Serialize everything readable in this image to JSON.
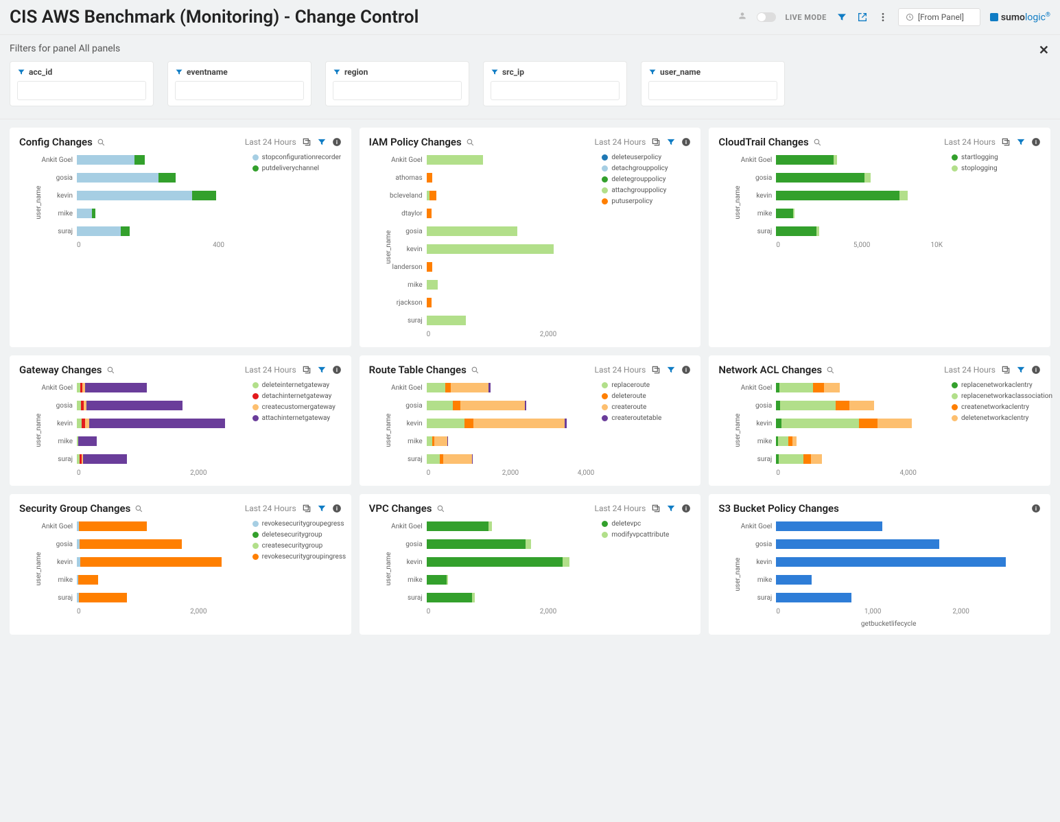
{
  "header": {
    "title": "CIS AWS Benchmark (Monitoring) - Change Control",
    "live_mode": "LIVE MODE",
    "time_label": "[From Panel]",
    "logo_a": "sumo",
    "logo_b": "logic"
  },
  "filters": {
    "title": "Filters for panel All panels",
    "items": [
      {
        "label": "acc_id"
      },
      {
        "label": "eventname"
      },
      {
        "label": "region"
      },
      {
        "label": "src_ip"
      },
      {
        "label": "user_name"
      }
    ]
  },
  "colors": {
    "lightblue": "#a6cee3",
    "blue": "#1f78b4",
    "lightgreen": "#b2df8a",
    "green": "#33a02c",
    "orange": "#ff7f00",
    "lightorange": "#fdbf6f",
    "purple": "#6a3d9a",
    "red": "#e31a1c",
    "pink": "#fb9a99",
    "sumoblue": "#2e7dd7"
  },
  "panels": [
    {
      "title": "Config Changes",
      "time": "Last 24 Hours",
      "ylabel": "user_name",
      "max": 500,
      "ticks": [
        {
          "v": 0,
          "l": "0"
        },
        {
          "v": 400,
          "l": "400"
        }
      ],
      "legend": [
        {
          "c": "lightblue",
          "l": "stopconfigurationrecorder"
        },
        {
          "c": "green",
          "l": "putdeliverychannel"
        }
      ],
      "rows": [
        {
          "l": "Ankit Goel",
          "segs": [
            {
              "c": "lightblue",
              "v": 170
            },
            {
              "c": "green",
              "v": 30
            }
          ]
        },
        {
          "l": "gosia",
          "segs": [
            {
              "c": "lightblue",
              "v": 240
            },
            {
              "c": "green",
              "v": 50
            }
          ]
        },
        {
          "l": "kevin",
          "segs": [
            {
              "c": "lightblue",
              "v": 340
            },
            {
              "c": "green",
              "v": 70
            }
          ]
        },
        {
          "l": "mike",
          "segs": [
            {
              "c": "lightblue",
              "v": 45
            },
            {
              "c": "green",
              "v": 10
            }
          ]
        },
        {
          "l": "suraj",
          "segs": [
            {
              "c": "lightblue",
              "v": 130
            },
            {
              "c": "green",
              "v": 25
            }
          ]
        }
      ]
    },
    {
      "title": "IAM Policy Changes",
      "time": "Last 24 Hours",
      "ylabel": "user_name",
      "max": 3000,
      "ticks": [
        {
          "v": 0,
          "l": "0"
        },
        {
          "v": 2000,
          "l": "2,000"
        }
      ],
      "legend": [
        {
          "c": "blue",
          "l": "deleteuserpolicy"
        },
        {
          "c": "lightblue",
          "l": "detachgrouppolicy"
        },
        {
          "c": "green",
          "l": "deletegrouppolicy"
        },
        {
          "c": "lightgreen",
          "l": "attachgrouppolicy"
        },
        {
          "c": "orange",
          "l": "putuserpolicy"
        }
      ],
      "rows": [
        {
          "l": "Ankit Goel",
          "segs": [
            {
              "c": "lightgreen",
              "v": 1000
            }
          ]
        },
        {
          "l": "athomas",
          "segs": [
            {
              "c": "orange",
              "v": 100
            }
          ]
        },
        {
          "l": "bcleveland",
          "segs": [
            {
              "c": "lightgreen",
              "v": 50
            },
            {
              "c": "orange",
              "v": 120
            }
          ]
        },
        {
          "l": "dtaylor",
          "segs": [
            {
              "c": "orange",
              "v": 90
            }
          ]
        },
        {
          "l": "gosia",
          "segs": [
            {
              "c": "lightgreen",
              "v": 1600
            }
          ]
        },
        {
          "l": "kevin",
          "segs": [
            {
              "c": "lightgreen",
              "v": 2250
            }
          ]
        },
        {
          "l": "landerson",
          "segs": [
            {
              "c": "orange",
              "v": 100
            }
          ]
        },
        {
          "l": "mike",
          "segs": [
            {
              "c": "lightgreen",
              "v": 200
            }
          ]
        },
        {
          "l": "rjackson",
          "segs": [
            {
              "c": "orange",
              "v": 90
            }
          ]
        },
        {
          "l": "suraj",
          "segs": [
            {
              "c": "lightgreen",
              "v": 700
            }
          ]
        }
      ]
    },
    {
      "title": "CloudTrail Changes",
      "time": "Last 24 Hours",
      "ylabel": "user_name",
      "max": 11000,
      "ticks": [
        {
          "v": 0,
          "l": "0"
        },
        {
          "v": 5000,
          "l": "5,000"
        },
        {
          "v": 10000,
          "l": "10K"
        }
      ],
      "legend": [
        {
          "c": "green",
          "l": "startlogging"
        },
        {
          "c": "lightgreen",
          "l": "stoplogging"
        }
      ],
      "rows": [
        {
          "l": "Ankit Goel",
          "segs": [
            {
              "c": "green",
              "v": 3700
            },
            {
              "c": "lightgreen",
              "v": 250
            }
          ]
        },
        {
          "l": "gosia",
          "segs": [
            {
              "c": "green",
              "v": 5700
            },
            {
              "c": "lightgreen",
              "v": 400
            }
          ]
        },
        {
          "l": "kevin",
          "segs": [
            {
              "c": "green",
              "v": 8000
            },
            {
              "c": "lightgreen",
              "v": 500
            }
          ]
        },
        {
          "l": "mike",
          "segs": [
            {
              "c": "green",
              "v": 1100
            },
            {
              "c": "lightgreen",
              "v": 90
            }
          ]
        },
        {
          "l": "suraj",
          "segs": [
            {
              "c": "green",
              "v": 2600
            },
            {
              "c": "lightgreen",
              "v": 200
            }
          ]
        }
      ]
    },
    {
      "title": "Gateway Changes",
      "time": "Last 24 Hours",
      "ylabel": "user_name",
      "max": 3000,
      "ticks": [
        {
          "v": 0,
          "l": "0"
        },
        {
          "v": 2000,
          "l": "2,000"
        }
      ],
      "legend": [
        {
          "c": "lightgreen",
          "l": "deleteinternetgateway"
        },
        {
          "c": "red",
          "l": "detachinternetgateway"
        },
        {
          "c": "lightorange",
          "l": "createcustomergateway"
        },
        {
          "c": "purple",
          "l": "attachinternetgateway"
        }
      ],
      "rows": [
        {
          "l": "Ankit Goel",
          "segs": [
            {
              "c": "lightgreen",
              "v": 60
            },
            {
              "c": "red",
              "v": 40
            },
            {
              "c": "lightorange",
              "v": 40
            },
            {
              "c": "purple",
              "v": 1100
            }
          ]
        },
        {
          "l": "gosia",
          "segs": [
            {
              "c": "lightgreen",
              "v": 70
            },
            {
              "c": "red",
              "v": 50
            },
            {
              "c": "lightorange",
              "v": 50
            },
            {
              "c": "purple",
              "v": 1700
            }
          ]
        },
        {
          "l": "kevin",
          "segs": [
            {
              "c": "lightgreen",
              "v": 90
            },
            {
              "c": "red",
              "v": 60
            },
            {
              "c": "lightorange",
              "v": 70
            },
            {
              "c": "purple",
              "v": 2400
            }
          ]
        },
        {
          "l": "mike",
          "segs": [
            {
              "c": "lightgreen",
              "v": 30
            },
            {
              "c": "purple",
              "v": 320
            }
          ]
        },
        {
          "l": "suraj",
          "segs": [
            {
              "c": "lightgreen",
              "v": 50
            },
            {
              "c": "red",
              "v": 30
            },
            {
              "c": "lightorange",
              "v": 30
            },
            {
              "c": "purple",
              "v": 780
            }
          ]
        }
      ]
    },
    {
      "title": "Route Table Changes",
      "time": "Last 24 Hours",
      "ylabel": "user_name",
      "max": 4500,
      "ticks": [
        {
          "v": 0,
          "l": "0"
        },
        {
          "v": 2000,
          "l": "2,000"
        },
        {
          "v": 4000,
          "l": "4,000"
        }
      ],
      "legend": [
        {
          "c": "lightgreen",
          "l": "replaceroute"
        },
        {
          "c": "orange",
          "l": "deleteroute"
        },
        {
          "c": "lightorange",
          "l": "createroute"
        },
        {
          "c": "purple",
          "l": "createroutetable"
        }
      ],
      "rows": [
        {
          "l": "Ankit Goel",
          "segs": [
            {
              "c": "lightgreen",
              "v": 500
            },
            {
              "c": "orange",
              "v": 150
            },
            {
              "c": "lightorange",
              "v": 1000
            },
            {
              "c": "purple",
              "v": 40
            }
          ]
        },
        {
          "l": "gosia",
          "segs": [
            {
              "c": "lightgreen",
              "v": 700
            },
            {
              "c": "orange",
              "v": 200
            },
            {
              "c": "lightorange",
              "v": 1700
            },
            {
              "c": "purple",
              "v": 50
            }
          ]
        },
        {
          "l": "kevin",
          "segs": [
            {
              "c": "lightgreen",
              "v": 1000
            },
            {
              "c": "orange",
              "v": 250
            },
            {
              "c": "lightorange",
              "v": 2400
            },
            {
              "c": "purple",
              "v": 60
            }
          ]
        },
        {
          "l": "mike",
          "segs": [
            {
              "c": "lightgreen",
              "v": 150
            },
            {
              "c": "orange",
              "v": 50
            },
            {
              "c": "lightorange",
              "v": 350
            },
            {
              "c": "purple",
              "v": 20
            }
          ]
        },
        {
          "l": "suraj",
          "segs": [
            {
              "c": "lightgreen",
              "v": 350
            },
            {
              "c": "orange",
              "v": 100
            },
            {
              "c": "lightorange",
              "v": 750
            },
            {
              "c": "purple",
              "v": 30
            }
          ]
        }
      ]
    },
    {
      "title": "Network ACL Changes",
      "time": "Last 24 Hours",
      "ylabel": "user_name",
      "max": 5500,
      "ticks": [
        {
          "v": 0,
          "l": "0"
        },
        {
          "v": 4000,
          "l": "4,000"
        }
      ],
      "legend": [
        {
          "c": "green",
          "l": "replacenetworkaclentry"
        },
        {
          "c": "lightgreen",
          "l": "replacenetworkaclassociation"
        },
        {
          "c": "orange",
          "l": "createnetworkaclentry"
        },
        {
          "c": "lightorange",
          "l": "deletenetworkaclentry"
        }
      ],
      "rows": [
        {
          "l": "Ankit Goel",
          "segs": [
            {
              "c": "green",
              "v": 100
            },
            {
              "c": "lightgreen",
              "v": 1100
            },
            {
              "c": "orange",
              "v": 350
            },
            {
              "c": "lightorange",
              "v": 500
            }
          ]
        },
        {
          "l": "gosia",
          "segs": [
            {
              "c": "green",
              "v": 130
            },
            {
              "c": "lightgreen",
              "v": 1800
            },
            {
              "c": "orange",
              "v": 450
            },
            {
              "c": "lightorange",
              "v": 800
            }
          ]
        },
        {
          "l": "kevin",
          "segs": [
            {
              "c": "green",
              "v": 180
            },
            {
              "c": "lightgreen",
              "v": 2500
            },
            {
              "c": "orange",
              "v": 600
            },
            {
              "c": "lightorange",
              "v": 1100
            }
          ]
        },
        {
          "l": "mike",
          "segs": [
            {
              "c": "green",
              "v": 50
            },
            {
              "c": "lightgreen",
              "v": 350
            },
            {
              "c": "orange",
              "v": 120
            },
            {
              "c": "lightorange",
              "v": 150
            }
          ]
        },
        {
          "l": "suraj",
          "segs": [
            {
              "c": "green",
              "v": 80
            },
            {
              "c": "lightgreen",
              "v": 800
            },
            {
              "c": "orange",
              "v": 250
            },
            {
              "c": "lightorange",
              "v": 350
            }
          ]
        }
      ]
    },
    {
      "title": "Security Group Changes",
      "time": "Last 24 Hours",
      "ylabel": "user_name",
      "max": 3000,
      "ticks": [
        {
          "v": 0,
          "l": "0"
        },
        {
          "v": 2000,
          "l": "2,000"
        }
      ],
      "legend": [
        {
          "c": "lightblue",
          "l": "revokesecuritygroupegress"
        },
        {
          "c": "green",
          "l": "deletesecuritygroup"
        },
        {
          "c": "lightgreen",
          "l": "createsecuritygroup"
        },
        {
          "c": "orange",
          "l": "revokesecuritygroupingress"
        }
      ],
      "rows": [
        {
          "l": "Ankit Goel",
          "segs": [
            {
              "c": "lightblue",
              "v": 40
            },
            {
              "c": "orange",
              "v": 1200
            }
          ]
        },
        {
          "l": "gosia",
          "segs": [
            {
              "c": "lightblue",
              "v": 50
            },
            {
              "c": "orange",
              "v": 1800
            }
          ]
        },
        {
          "l": "kevin",
          "segs": [
            {
              "c": "lightblue",
              "v": 60
            },
            {
              "c": "orange",
              "v": 2500
            }
          ]
        },
        {
          "l": "mike",
          "segs": [
            {
              "c": "lightblue",
              "v": 25
            },
            {
              "c": "orange",
              "v": 350
            }
          ]
        },
        {
          "l": "suraj",
          "segs": [
            {
              "c": "lightblue",
              "v": 35
            },
            {
              "c": "orange",
              "v": 850
            }
          ]
        }
      ]
    },
    {
      "title": "VPC Changes",
      "time": "Last 24 Hours",
      "ylabel": "user_name",
      "max": 3000,
      "ticks": [
        {
          "v": 0,
          "l": "0"
        },
        {
          "v": 2000,
          "l": "2,000"
        }
      ],
      "legend": [
        {
          "c": "green",
          "l": "deletevpc"
        },
        {
          "c": "lightgreen",
          "l": "modifyvpcattribute"
        }
      ],
      "rows": [
        {
          "l": "Ankit Goel",
          "segs": [
            {
              "c": "green",
              "v": 1100
            },
            {
              "c": "lightgreen",
              "v": 60
            }
          ]
        },
        {
          "l": "gosia",
          "segs": [
            {
              "c": "green",
              "v": 1750
            },
            {
              "c": "lightgreen",
              "v": 90
            }
          ]
        },
        {
          "l": "kevin",
          "segs": [
            {
              "c": "green",
              "v": 2400
            },
            {
              "c": "lightgreen",
              "v": 120
            }
          ]
        },
        {
          "l": "mike",
          "segs": [
            {
              "c": "green",
              "v": 350
            },
            {
              "c": "lightgreen",
              "v": 30
            }
          ]
        },
        {
          "l": "suraj",
          "segs": [
            {
              "c": "green",
              "v": 800
            },
            {
              "c": "lightgreen",
              "v": 50
            }
          ]
        }
      ]
    },
    {
      "title": "S3 Bucket Policy Changes",
      "time": "",
      "ylabel": "user_name",
      "max": 3000,
      "ticks": [
        {
          "v": 0,
          "l": "0"
        },
        {
          "v": 1000,
          "l": "1,000"
        },
        {
          "v": 2000,
          "l": "2,000"
        }
      ],
      "xlabel": "getbucketlifecycle",
      "noicons": true,
      "legend": [],
      "rows": [
        {
          "l": "Ankit Goel",
          "segs": [
            {
              "c": "sumoblue",
              "v": 1200
            }
          ]
        },
        {
          "l": "gosia",
          "segs": [
            {
              "c": "sumoblue",
              "v": 1850
            }
          ]
        },
        {
          "l": "kevin",
          "segs": [
            {
              "c": "sumoblue",
              "v": 2600
            }
          ]
        },
        {
          "l": "mike",
          "segs": [
            {
              "c": "sumoblue",
              "v": 400
            }
          ]
        },
        {
          "l": "suraj",
          "segs": [
            {
              "c": "sumoblue",
              "v": 850
            }
          ]
        }
      ]
    }
  ]
}
